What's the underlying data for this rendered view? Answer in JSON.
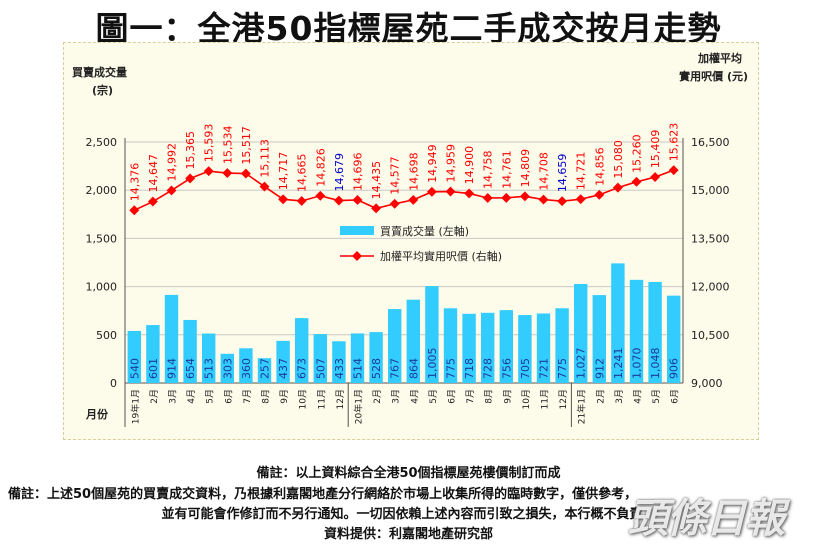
{
  "title": "圖一：全港50指標屋苑二手成交按月走勢",
  "chart_data": {
    "type": "bar+line",
    "left_axis_label": [
      "買賣成交量",
      "(宗)"
    ],
    "right_axis_label": [
      "加權平均",
      "實用呎價 (元)"
    ],
    "x_axis_label": "月份",
    "left_ticks": [
      "0",
      "500",
      "1,000",
      "1,500",
      "2,000",
      "2,500"
    ],
    "right_ticks": [
      "9,000",
      "10,500",
      "12,000",
      "13,500",
      "15,000",
      "16,500"
    ],
    "ylim_left": [
      0,
      2500
    ],
    "ylim_right": [
      9000,
      16500
    ],
    "categories": [
      "19年1月",
      "2月",
      "3月",
      "4月",
      "5月",
      "6月",
      "7月",
      "8月",
      "9月",
      "10月",
      "11月",
      "12月",
      "20年1月",
      "2月",
      "3月",
      "4月",
      "5月",
      "6月",
      "7月",
      "8月",
      "9月",
      "10月",
      "11月",
      "12月",
      "21年1月",
      "2月",
      "3月",
      "4月",
      "5月",
      "6月"
    ],
    "series": [
      {
        "name": "買賣成交量 (左軸)",
        "axis": "left",
        "kind": "bar",
        "color": "#33ccff",
        "values": [
          540,
          601,
          914,
          654,
          513,
          303,
          360,
          257,
          437,
          673,
          507,
          433,
          514,
          528,
          767,
          864,
          1005,
          775,
          718,
          728,
          756,
          705,
          721,
          775,
          1027,
          912,
          1241,
          1070,
          1048,
          906
        ],
        "labels": [
          "540",
          "601",
          "914",
          "654",
          "513",
          "303",
          "360",
          "257",
          "437",
          "673",
          "507",
          "433",
          "514",
          "528",
          "767",
          "864",
          "1,005",
          "775",
          "718",
          "728",
          "756",
          "705",
          "721",
          "775",
          "1,027",
          "912",
          "1,241",
          "1,070",
          "1,048",
          "906"
        ]
      },
      {
        "name": "加權平均實用呎價 (右軸)",
        "axis": "right",
        "kind": "line",
        "color": "#ff0000",
        "values": [
          14376,
          14647,
          14992,
          15365,
          15593,
          15534,
          15517,
          15113,
          14717,
          14665,
          14826,
          14679,
          14696,
          14435,
          14577,
          14698,
          14949,
          14959,
          14900,
          14758,
          14761,
          14809,
          14708,
          14659,
          14721,
          14856,
          15080,
          15260,
          15409,
          15623
        ],
        "labels": [
          "14,376",
          "14,647",
          "14,992",
          "15,365",
          "15,593",
          "15,534",
          "15,517",
          "15,113",
          "14,717",
          "14,665",
          "14,826",
          "14,679",
          "14,696",
          "14,435",
          "14,577",
          "14,698",
          "14,949",
          "14,959",
          "14,900",
          "14,758",
          "14,761",
          "14,809",
          "14,708",
          "14,659",
          "14,721",
          "14,856",
          "15,080",
          "15,260",
          "15,409",
          "15,623"
        ],
        "highlight_color": "#0000cc",
        "highlight_indices": [
          11,
          23
        ]
      }
    ],
    "legend": {
      "placement": "middle-left",
      "bar_label": "買賣成交量 (左軸)",
      "line_label": "加權平均實用呎價 (右軸)"
    }
  },
  "notes": {
    "line1": "備註：以上資料綜合全港50個指標屋苑樓價制訂而成",
    "line2": "備註：上述50個屋苑的買賣成交資料，乃根據利嘉閣地產分行網絡於市場上收集所得的臨時數字，僅供參考，",
    "line3": "並有可能會作修訂而不另行通知。一切因依賴上述內容而引致之損失，本行概不負責。",
    "line4": "資料提供：利嘉閣地產研究部"
  },
  "watermark": "頭條日報"
}
